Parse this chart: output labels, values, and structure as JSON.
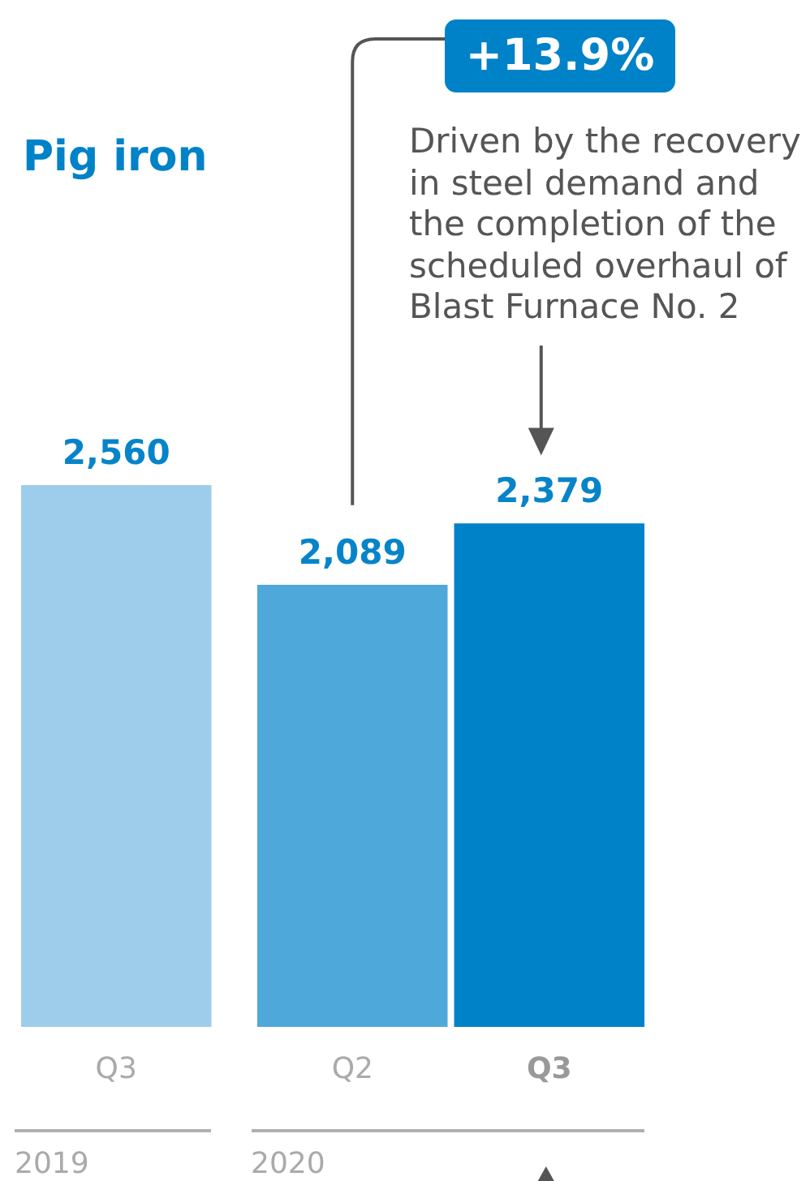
{
  "chart_data": {
    "type": "bar",
    "title": "Pig iron",
    "categories": [
      "Q3",
      "Q2",
      "Q3"
    ],
    "values": [
      2560,
      2089,
      2379
    ],
    "value_labels": [
      "2,560",
      "2,089",
      "2,379"
    ],
    "colors": [
      "#9dcdea",
      "#4fa8da",
      "#0082c8"
    ],
    "tick_labels": "x",
    "annotations": [
      "+13.9%",
      "Driven by the recovery in steel demand and the completion of the scheduled overhaul of Blast Furnace No. 2",
      "2019",
      "2020"
    ]
  }
}
